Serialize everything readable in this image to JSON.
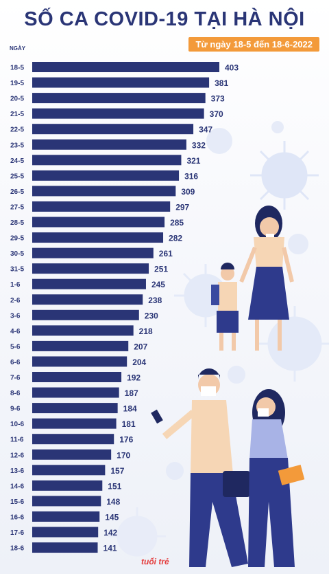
{
  "header": {
    "title": "SỐ CA COVID-19 TẠI HÀ NỘI",
    "subtitle": "Từ ngày 18-5 đến 18-6-2022",
    "ylabel": "NGÀY"
  },
  "logo": {
    "text": "tuổi trẻ"
  },
  "colors": {
    "bar": "#2a3576",
    "accent": "#f39a3a",
    "virus": "#c9d6f3"
  },
  "chart_data": {
    "type": "bar",
    "orientation": "horizontal",
    "title": "SỐ CA COVID-19 TẠI HÀ NỘI",
    "subtitle": "Từ ngày 18-5 đến 18-6-2022",
    "ylabel": "NGÀY",
    "xlabel": "",
    "categories": [
      "18-5",
      "19-5",
      "20-5",
      "21-5",
      "22-5",
      "23-5",
      "24-5",
      "25-5",
      "26-5",
      "27-5",
      "28-5",
      "29-5",
      "30-5",
      "31-5",
      "1-6",
      "2-6",
      "3-6",
      "4-6",
      "5-6",
      "6-6",
      "7-6",
      "8-6",
      "9-6",
      "10-6",
      "11-6",
      "12-6",
      "13-6",
      "14-6",
      "15-6",
      "16-6",
      "17-6",
      "18-6"
    ],
    "values": [
      403,
      381,
      373,
      370,
      347,
      332,
      321,
      316,
      309,
      297,
      285,
      282,
      261,
      251,
      245,
      238,
      230,
      218,
      207,
      204,
      192,
      187,
      184,
      181,
      176,
      170,
      157,
      151,
      148,
      145,
      142,
      141
    ],
    "xlim": [
      0,
      403
    ],
    "grid": false,
    "legend": "none"
  }
}
